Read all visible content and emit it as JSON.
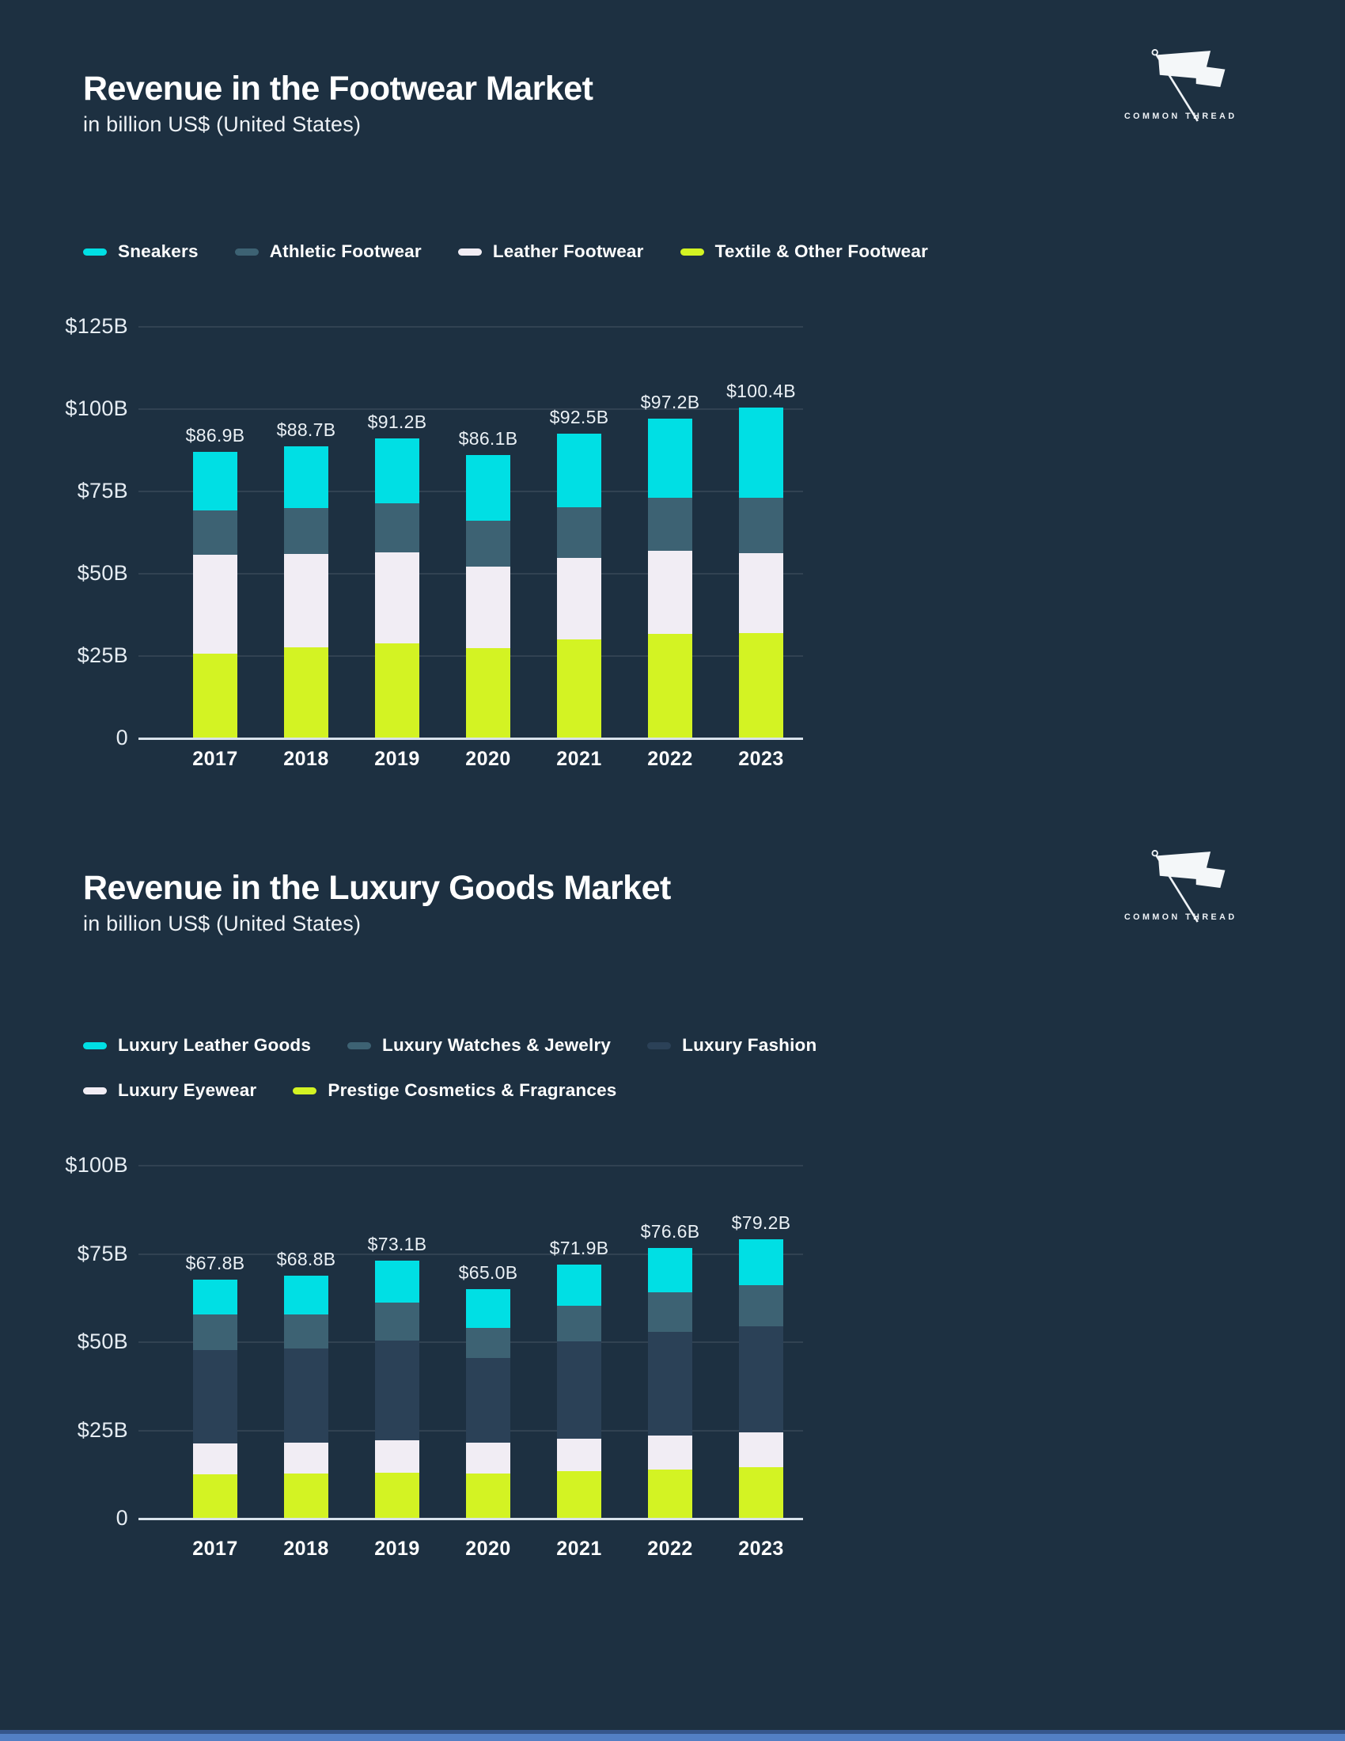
{
  "page": {
    "background": "#1d3041",
    "footer_bar_top_color": "#35568c",
    "footer_bar_bottom_color": "#527fc4"
  },
  "logo": {
    "text": "COMMON THREAD"
  },
  "chart_data": [
    {
      "type": "bar",
      "stacked": true,
      "title": "Revenue in the Footwear Market",
      "subtitle": "in billion US$ (United States)",
      "categories": [
        "2017",
        "2018",
        "2019",
        "2020",
        "2021",
        "2022",
        "2023"
      ],
      "totals_labels": [
        "$86.9B",
        "$88.7B",
        "$91.2B",
        "$86.1B",
        "$92.5B",
        "$97.2B",
        "$100.4B"
      ],
      "totals_values": [
        86.9,
        88.7,
        91.2,
        86.1,
        92.5,
        97.2,
        100.4
      ],
      "ylim": [
        0,
        125
      ],
      "grid": true,
      "legend_position": "top",
      "yticks": [
        {
          "value": 125,
          "label": "$125B"
        },
        {
          "value": 100,
          "label": "$100B"
        },
        {
          "value": 75,
          "label": "$75B"
        },
        {
          "value": 50,
          "label": "$50B"
        },
        {
          "value": 25,
          "label": "$25B"
        },
        {
          "value": 0,
          "label": "0"
        }
      ],
      "series": [
        {
          "name": "Textile & Other Footwear",
          "color": "#d3f323",
          "values": [
            25.7,
            27.6,
            28.9,
            27.5,
            30.1,
            31.7,
            32.0
          ]
        },
        {
          "name": "Leather Footwear",
          "color": "#f1edf4",
          "values": [
            30.0,
            28.3,
            27.6,
            24.6,
            24.6,
            25.2,
            24.3
          ]
        },
        {
          "name": "Athletic Footwear",
          "color": "#3d6273",
          "values": [
            13.6,
            14.0,
            15.0,
            13.9,
            15.5,
            16.1,
            16.7
          ]
        },
        {
          "name": "Sneakers",
          "color": "#00dfe4",
          "values": [
            17.6,
            18.8,
            19.7,
            20.1,
            22.3,
            24.2,
            27.4
          ]
        }
      ],
      "legend_rows": [
        [
          "Sneakers",
          "Athletic Footwear",
          "Leather Footwear",
          "Textile & Other Footwear"
        ]
      ]
    },
    {
      "type": "bar",
      "stacked": true,
      "title": "Revenue in the Luxury Goods Market",
      "subtitle": "in billion US$ (United States)",
      "categories": [
        "2017",
        "2018",
        "2019",
        "2020",
        "2021",
        "2022",
        "2023"
      ],
      "totals_labels": [
        "$67.8B",
        "$68.8B",
        "$73.1B",
        "$65.0B",
        "$71.9B",
        "$76.6B",
        "$79.2B"
      ],
      "totals_values": [
        67.8,
        68.8,
        73.1,
        65.0,
        71.9,
        76.6,
        79.2
      ],
      "ylim": [
        0,
        100
      ],
      "grid": true,
      "legend_position": "top",
      "yticks": [
        {
          "value": 100,
          "label": "$100B"
        },
        {
          "value": 75,
          "label": "$75B"
        },
        {
          "value": 50,
          "label": "$50B"
        },
        {
          "value": 25,
          "label": "$25B"
        },
        {
          "value": 0,
          "label": "0"
        }
      ],
      "series": [
        {
          "name": "Prestige Cosmetics & Fragrances",
          "color": "#d3f323",
          "values": [
            12.6,
            12.8,
            13.0,
            12.8,
            13.5,
            14.0,
            14.6
          ]
        },
        {
          "name": "Luxury Eyewear",
          "color": "#f1edf4",
          "values": [
            8.7,
            8.7,
            9.2,
            8.7,
            9.2,
            9.6,
            9.9
          ]
        },
        {
          "name": "Luxury Fashion",
          "color": "#2b4157",
          "values": [
            26.4,
            26.6,
            28.2,
            24.1,
            27.5,
            29.3,
            30.0
          ]
        },
        {
          "name": "Luxury Watches & Jewelry",
          "color": "#3d6273",
          "values": [
            10.1,
            9.8,
            10.9,
            8.5,
            10.2,
            11.2,
            11.6
          ]
        },
        {
          "name": "Luxury Leather Goods",
          "color": "#00dfe4",
          "values": [
            10.0,
            10.9,
            11.8,
            10.9,
            11.5,
            12.5,
            13.1
          ]
        }
      ],
      "legend_rows": [
        [
          "Luxury Leather Goods",
          "Luxury Watches & Jewelry",
          "Luxury Fashion"
        ],
        [
          "Luxury Eyewear",
          "Prestige Cosmetics & Fragrances"
        ]
      ]
    }
  ]
}
